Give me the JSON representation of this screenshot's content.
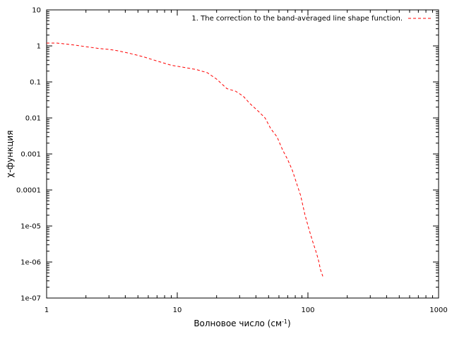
{
  "chart_data": {
    "type": "line",
    "title": "",
    "xlabel": "Волновое число (см",
    "xlabel_sup": "-1",
    "xlabel_suffix": ")",
    "ylabel": "χ-функция",
    "xscale": "log",
    "yscale": "log",
    "xlim": [
      1,
      1000
    ],
    "ylim": [
      1e-07,
      10
    ],
    "grid": false,
    "legend_position": "top-right",
    "x_ticks": [
      {
        "value": 1,
        "label": "1"
      },
      {
        "value": 10,
        "label": "10"
      },
      {
        "value": 100,
        "label": "100"
      },
      {
        "value": 1000,
        "label": "1000"
      }
    ],
    "y_ticks": [
      {
        "value": 1e-07,
        "label": "1e-07"
      },
      {
        "value": 1e-06,
        "label": "1e-06"
      },
      {
        "value": 1e-05,
        "label": "1e-05"
      },
      {
        "value": 0.0001,
        "label": "0.0001"
      },
      {
        "value": 0.001,
        "label": "0.001"
      },
      {
        "value": 0.01,
        "label": "0.01"
      },
      {
        "value": 0.1,
        "label": "0.1"
      },
      {
        "value": 1,
        "label": "1"
      },
      {
        "value": 10,
        "label": "10"
      }
    ],
    "series": [
      {
        "name": "1. The correction to the band-averaged line shape function.",
        "color": "#ff0000",
        "line_style": "dashed",
        "x": [
          1.0,
          1.2,
          1.5,
          2.0,
          2.5,
          3.0,
          3.6,
          4.5,
          5.5,
          7.0,
          9.0,
          11.5,
          14.0,
          17.0,
          20.0,
          24.0,
          28.0,
          32.0,
          36.0,
          42.0,
          47.0,
          52.0,
          58.0,
          64.0,
          70.0,
          76.0,
          82.0,
          88.0,
          95.0,
          102.0,
          108.0,
          115.0,
          120.0,
          125.0,
          130.0
        ],
        "y": [
          1.2,
          1.2,
          1.1,
          0.95,
          0.85,
          0.8,
          0.72,
          0.6,
          0.5,
          0.38,
          0.29,
          0.25,
          0.22,
          0.18,
          0.12,
          0.065,
          0.055,
          0.04,
          0.025,
          0.015,
          0.01,
          0.005,
          0.003,
          0.0013,
          0.0007,
          0.00035,
          0.00015,
          7e-05,
          2e-05,
          8e-06,
          4e-06,
          2e-06,
          1.2e-06,
          6e-07,
          4e-07
        ]
      }
    ]
  }
}
